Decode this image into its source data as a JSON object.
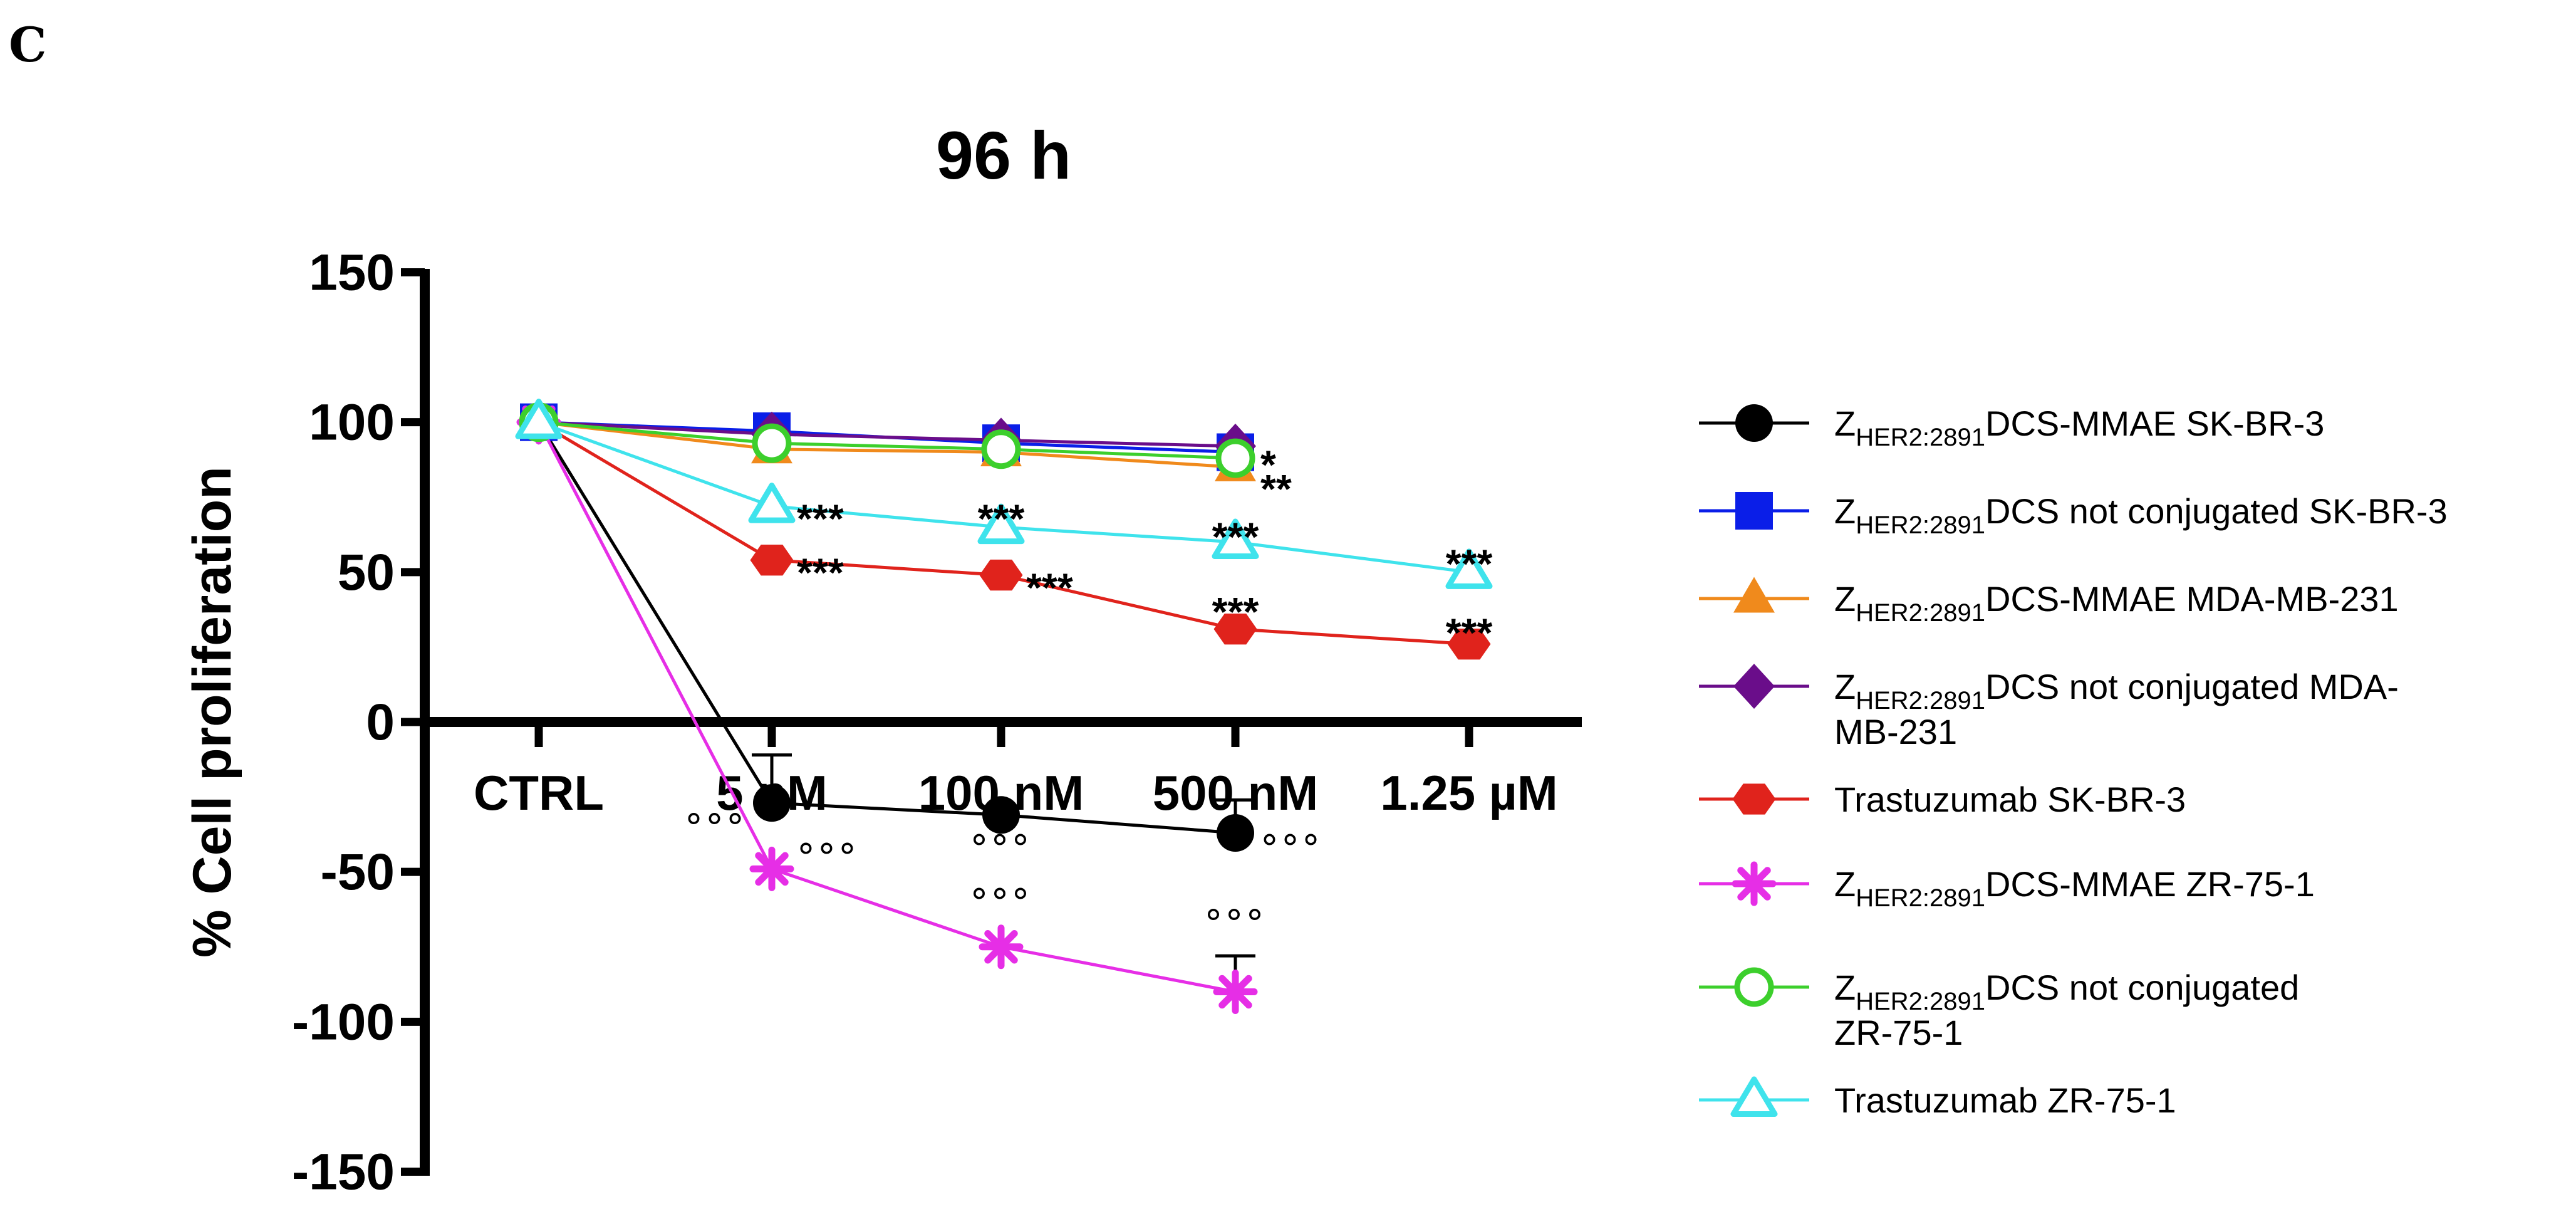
{
  "panel_label": "C",
  "chart_data": {
    "type": "line",
    "title": "96 h",
    "xlabel": "",
    "ylabel": "% Cell proliferation",
    "ylim": [
      -150,
      150
    ],
    "yticks": [
      150,
      100,
      50,
      0,
      -50,
      -100,
      -150
    ],
    "categories": [
      "CTRL",
      "5 nM",
      "100 nM",
      "500 nM",
      "1.25 µM"
    ],
    "legend_position": "right",
    "series": [
      {
        "name": "ZHER2:2891DCS-MMAE SK-BR-3",
        "label_main": "Z",
        "label_sub": "HER2:2891",
        "label_rest": "DCS-MMAE SK-BR-3",
        "label_rest2": "",
        "color": "#000000",
        "marker": "circle",
        "values": [
          100,
          -27,
          -31,
          -37,
          null
        ],
        "error": [
          0,
          16,
          0,
          11,
          null
        ]
      },
      {
        "name": "ZHER2:2891DCS not conjugated SK-BR-3",
        "label_main": "Z",
        "label_sub": "HER2:2891",
        "label_rest": "DCS not conjugated SK-BR-3",
        "label_rest2": "",
        "color": "#0a1ee8",
        "marker": "square",
        "values": [
          100,
          97,
          93,
          90,
          null
        ],
        "error": null
      },
      {
        "name": "ZHER2:2891DCS-MMAE MDA-MB-231",
        "label_main": "Z",
        "label_sub": "HER2:2891",
        "label_rest": "DCS-MMAE MDA-MB-231",
        "label_rest2": "",
        "color": "#f08a1c",
        "marker": "triangle",
        "values": [
          100,
          91,
          90,
          85,
          null
        ],
        "error": null
      },
      {
        "name": "ZHER2:2891DCS not conjugated MDA-MB-231",
        "label_main": "Z",
        "label_sub": "HER2:2891",
        "label_rest": "DCS not conjugated MDA-",
        "label_rest2": "MB-231",
        "color": "#6a0d8a",
        "marker": "diamond",
        "values": [
          100,
          96,
          94,
          92,
          null
        ],
        "error": null
      },
      {
        "name": "Trastuzumab SK-BR-3",
        "label_main": "",
        "label_sub": "",
        "label_rest": "Trastuzumab SK-BR-3",
        "label_rest2": "",
        "color": "#e0231c",
        "marker": "hexagon",
        "values": [
          100,
          54,
          49,
          31,
          26
        ],
        "error": null
      },
      {
        "name": "ZHER2:2891DCS-MMAE ZR-75-1",
        "label_main": "Z",
        "label_sub": "HER2:2891",
        "label_rest": "DCS-MMAE ZR-75-1",
        "label_rest2": "",
        "color": "#e62ee6",
        "marker": "asterisk",
        "values": [
          100,
          -49,
          -75,
          -90,
          null
        ],
        "error": [
          0,
          0,
          0,
          12,
          null
        ]
      },
      {
        "name": "ZHER2:2891DCS not conjugated ZR-75-1",
        "label_main": "Z",
        "label_sub": "HER2:2891",
        "label_rest": "DCS not conjugated",
        "label_rest2": "ZR-75-1",
        "color": "#3ccf2c",
        "marker": "open-circle",
        "values": [
          100,
          93,
          91,
          88,
          null
        ],
        "error": null
      },
      {
        "name": "Trastuzumab ZR-75-1",
        "label_main": "",
        "label_sub": "",
        "label_rest": "Trastuzumab ZR-75-1",
        "label_rest2": "",
        "color": "#3fe3ec",
        "marker": "open-triangle",
        "values": [
          100,
          72,
          65,
          60,
          50
        ],
        "error": null
      }
    ],
    "annotations": [
      {
        "text": "***",
        "cat": 1,
        "value": 72,
        "placement": "right"
      },
      {
        "text": "***",
        "cat": 1,
        "value": 54,
        "placement": "right"
      },
      {
        "text": "***",
        "cat": 2,
        "value": 72,
        "placement": "center-above"
      },
      {
        "text": "***",
        "cat": 2,
        "value": 49,
        "placement": "right"
      },
      {
        "text": "*",
        "cat": 3,
        "value": 90,
        "placement": "right"
      },
      {
        "text": "**",
        "cat": 3,
        "value": 82,
        "placement": "right"
      },
      {
        "text": "***",
        "cat": 3,
        "value": 66,
        "placement": "center-above"
      },
      {
        "text": "***",
        "cat": 3,
        "value": 41,
        "placement": "center-above"
      },
      {
        "text": "***",
        "cat": 4,
        "value": 57,
        "placement": "center-above"
      },
      {
        "text": "***",
        "cat": 4,
        "value": 34,
        "placement": "center-above"
      },
      {
        "text": "°°°",
        "cat": 1,
        "value": -33,
        "placement": "left"
      },
      {
        "text": "°°°",
        "cat": 1,
        "value": -43,
        "placement": "right"
      },
      {
        "text": "°°°",
        "cat": 2,
        "value": -40,
        "placement": "center-above"
      },
      {
        "text": "°°°",
        "cat": 2,
        "value": -58,
        "placement": "center-above"
      },
      {
        "text": "°°°",
        "cat": 3,
        "value": -40,
        "placement": "right"
      },
      {
        "text": "°°°",
        "cat": 3,
        "value": -65,
        "placement": "center-above"
      }
    ]
  }
}
